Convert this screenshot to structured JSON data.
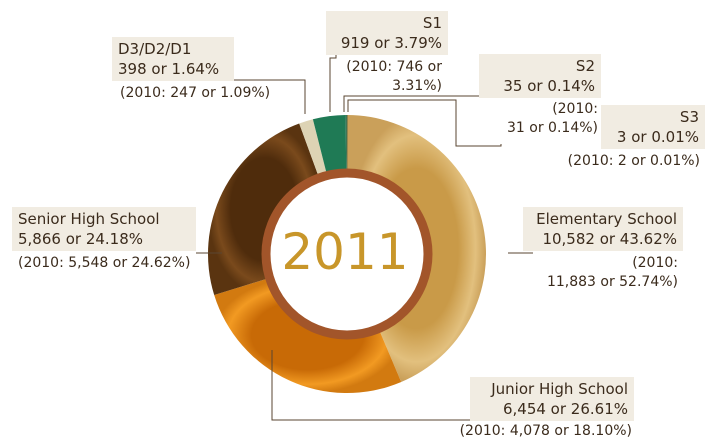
{
  "chart_data": {
    "type": "pie",
    "variant": "donut",
    "center_label": "2011",
    "series": [
      {
        "name": "Elementary School",
        "value": 10582,
        "percent": 43.62,
        "value_text": "10,582 or 43.62%",
        "prev_text": "(2010: 11,883 or 52.74%)",
        "prev_line1": "(2010:",
        "prev_line2": "11,883 or 52.74%)",
        "color": "#d8b06a"
      },
      {
        "name": "Junior High School",
        "value": 6454,
        "percent": 26.61,
        "value_text": "6,454 or 26.61%",
        "prev_text": "(2010: 4,078 or 18.10%)",
        "color": "#e88e16"
      },
      {
        "name": "Senior High School",
        "value": 5866,
        "percent": 24.18,
        "value_text": "5,866 or 24.18%",
        "prev_text": "(2010: 5,548 or 24.62%)",
        "color": "#6b3f14"
      },
      {
        "name": "D3/D2/D1",
        "value": 398,
        "percent": 1.64,
        "value_text": "398 or 1.64%",
        "prev_text": "(2010: 247 or 1.09%)",
        "color": "#ddd3b4"
      },
      {
        "name": "S1",
        "value": 919,
        "percent": 3.79,
        "value_text": "919 or 3.79%",
        "prev_text": "(2010: 746 or 3.31%)",
        "prev_line1": "(2010: 746 or",
        "prev_line2": "3.31%)",
        "color": "#1f7a55"
      },
      {
        "name": "S2",
        "value": 35,
        "percent": 0.14,
        "value_text": "35 or 0.14%",
        "prev_text": "(2010: 31 or 0.14%)",
        "prev_line1": "(2010:",
        "prev_line2": "31 or 0.14%)",
        "color": "#2f6b4a"
      },
      {
        "name": "S3",
        "value": 3,
        "percent": 0.01,
        "value_text": "3 or 0.01%",
        "prev_text": "(2010: 2 or 0.01%)",
        "color": "#3b5b3b"
      }
    ],
    "colors": {
      "inner_ring": "#a2552a",
      "label_box": "#f1ece2",
      "center_text": "#c8962a",
      "leader_line": "#5a4632"
    }
  }
}
